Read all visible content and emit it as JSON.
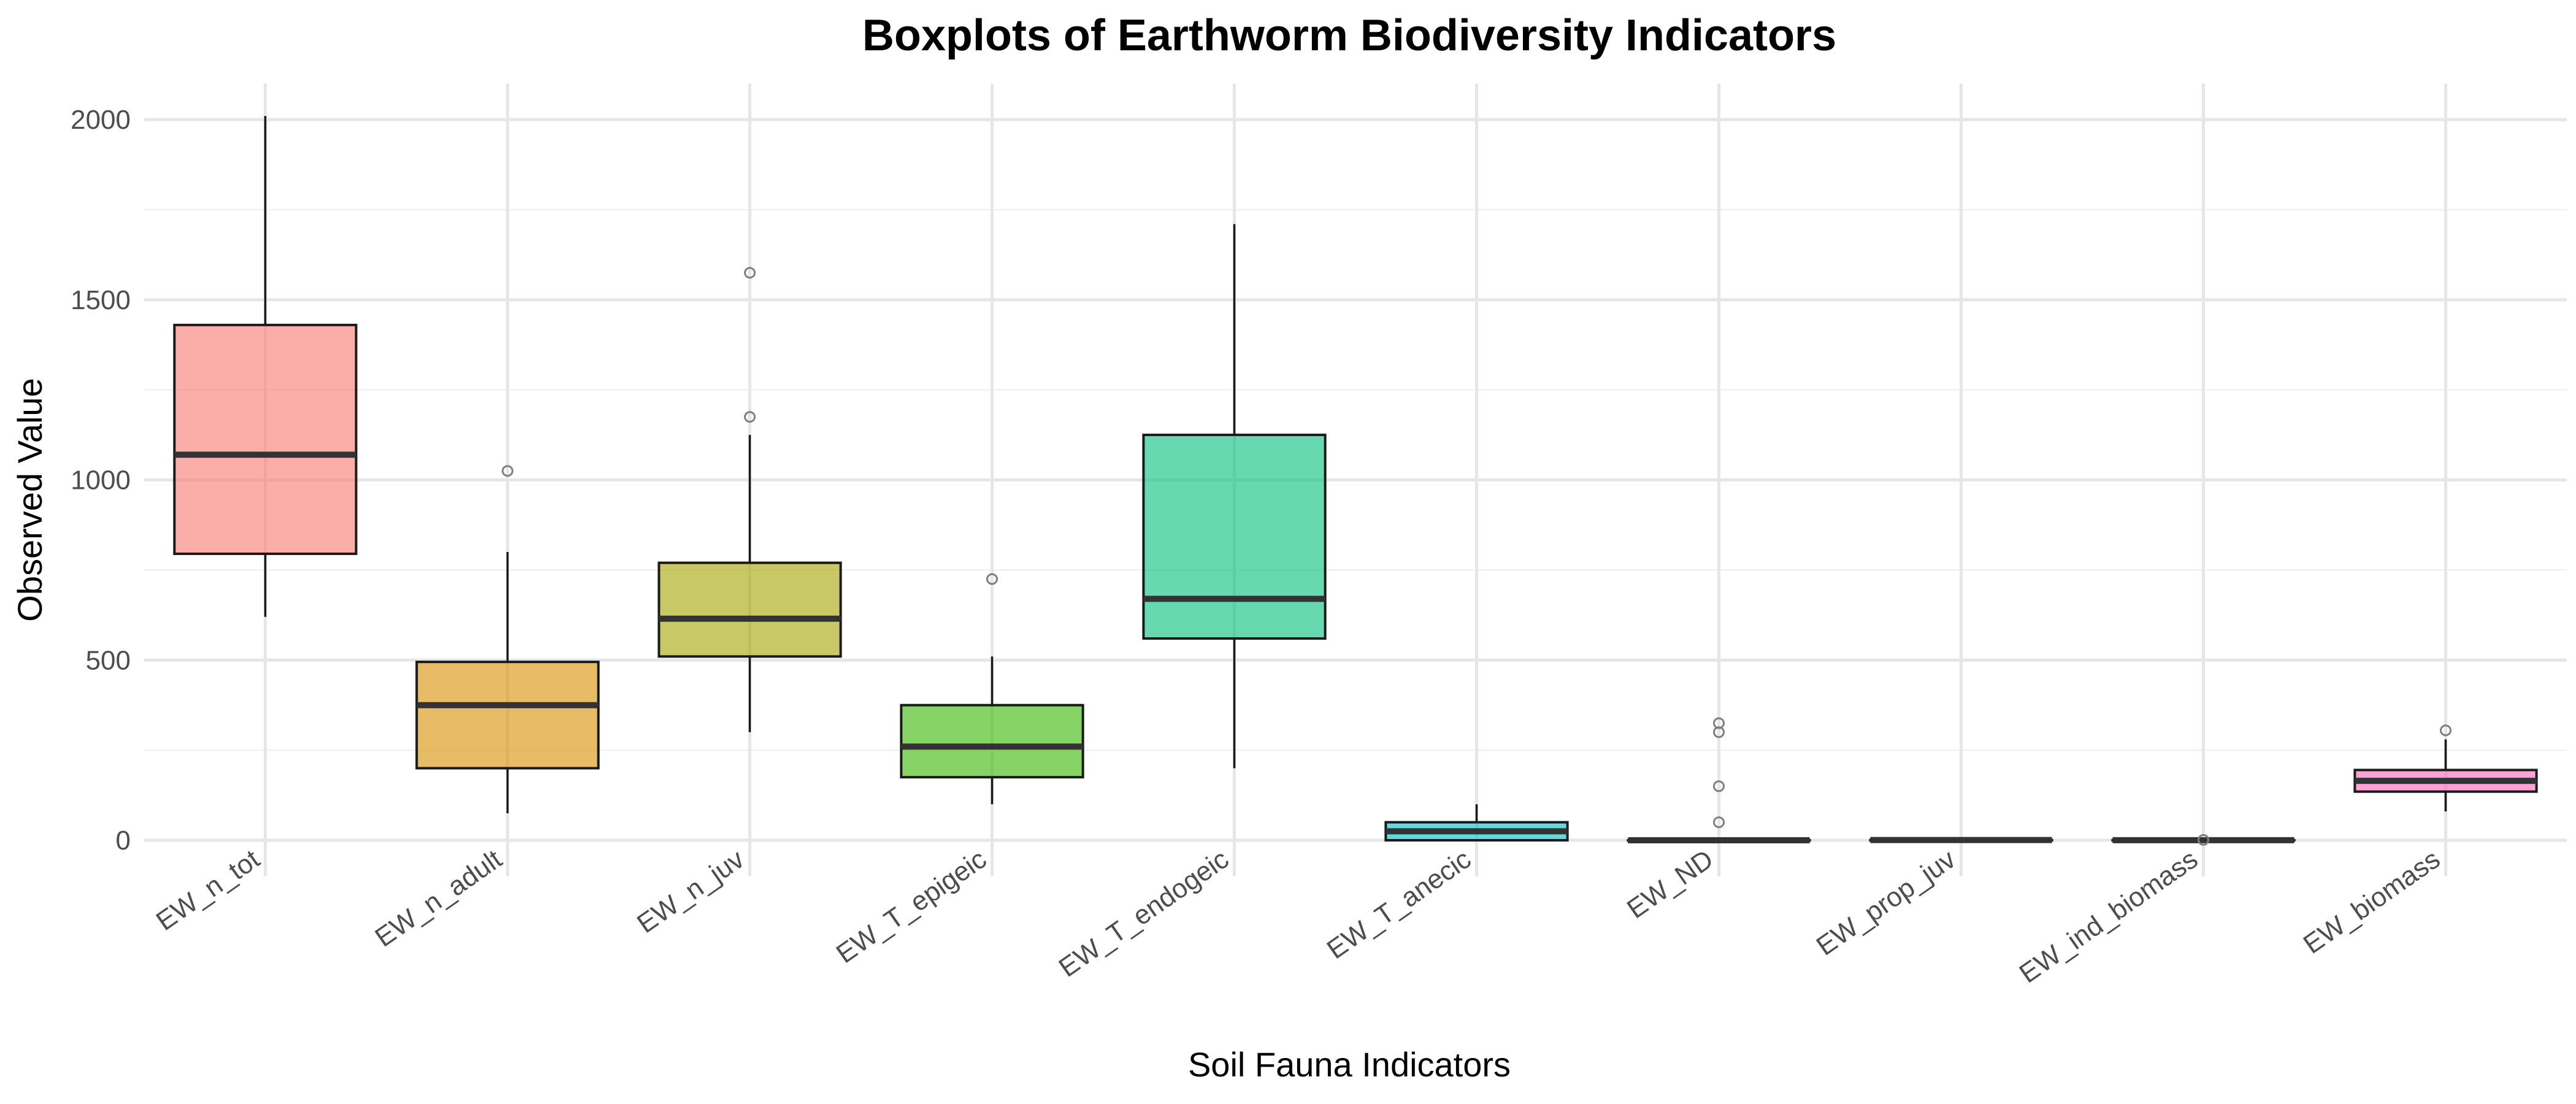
{
  "chart_data": {
    "type": "boxplot",
    "title": "Boxplots of Earthworm Biodiversity Indicators",
    "xlabel": "Soil Fauna Indicators",
    "ylabel": "Observed Value",
    "ylim": [
      -100,
      2100
    ],
    "yticks": [
      0,
      500,
      1000,
      1500,
      2000
    ],
    "grid": true,
    "legend": "none",
    "categories": [
      "EW_n_tot",
      "EW_n_adult",
      "EW_n_juv",
      "EW_T_epigeic",
      "EW_T_endogeic",
      "EW_T_anecic",
      "EW_ND",
      "EW_prop_juv",
      "EW_ind_biomass",
      "EW_biomass"
    ],
    "boxes": [
      {
        "category": "EW_n_tot",
        "color": "#F8766D",
        "whisker_low": 620,
        "q1": 795,
        "median": 1070,
        "q3": 1430,
        "whisker_high": 2010,
        "outliers": []
      },
      {
        "category": "EW_n_adult",
        "color": "#D89000",
        "whisker_low": 75,
        "q1": 200,
        "median": 375,
        "q3": 495,
        "whisker_high": 800,
        "outliers": [
          1025
        ]
      },
      {
        "category": "EW_n_juv",
        "color": "#A3A500",
        "whisker_low": 300,
        "q1": 510,
        "median": 615,
        "q3": 770,
        "whisker_high": 1125,
        "outliers": [
          1175,
          1575
        ]
      },
      {
        "category": "EW_T_epigeic",
        "color": "#39B600",
        "whisker_low": 100,
        "q1": 175,
        "median": 260,
        "q3": 375,
        "whisker_high": 510,
        "outliers": [
          725
        ]
      },
      {
        "category": "EW_T_endogeic",
        "color": "#00BF7D",
        "whisker_low": 200,
        "q1": 560,
        "median": 670,
        "q3": 1125,
        "whisker_high": 1710,
        "outliers": []
      },
      {
        "category": "EW_T_anecic",
        "color": "#00BFC4",
        "whisker_low": 0,
        "q1": 0,
        "median": 25,
        "q3": 50,
        "whisker_high": 100,
        "outliers": []
      },
      {
        "category": "EW_ND",
        "color": "#00B0F6",
        "whisker_low": 0,
        "q1": 0,
        "median": 0,
        "q3": 0,
        "whisker_high": 0,
        "outliers": [
          50,
          150,
          300,
          325
        ]
      },
      {
        "category": "EW_prop_juv",
        "color": "#9590FF",
        "whisker_low": 0.4,
        "q1": 0.5,
        "median": 0.6,
        "q3": 0.7,
        "whisker_high": 0.8,
        "outliers": []
      },
      {
        "category": "EW_ind_biomass",
        "color": "#E76BF3",
        "whisker_low": 0.1,
        "q1": 0.2,
        "median": 0.3,
        "q3": 0.4,
        "whisker_high": 0.6,
        "outliers": [
          1
        ]
      },
      {
        "category": "EW_biomass",
        "color": "#FF62BC",
        "whisker_low": 80,
        "q1": 135,
        "median": 165,
        "q3": 195,
        "whisker_high": 280,
        "outliers": [
          305
        ]
      }
    ]
  }
}
